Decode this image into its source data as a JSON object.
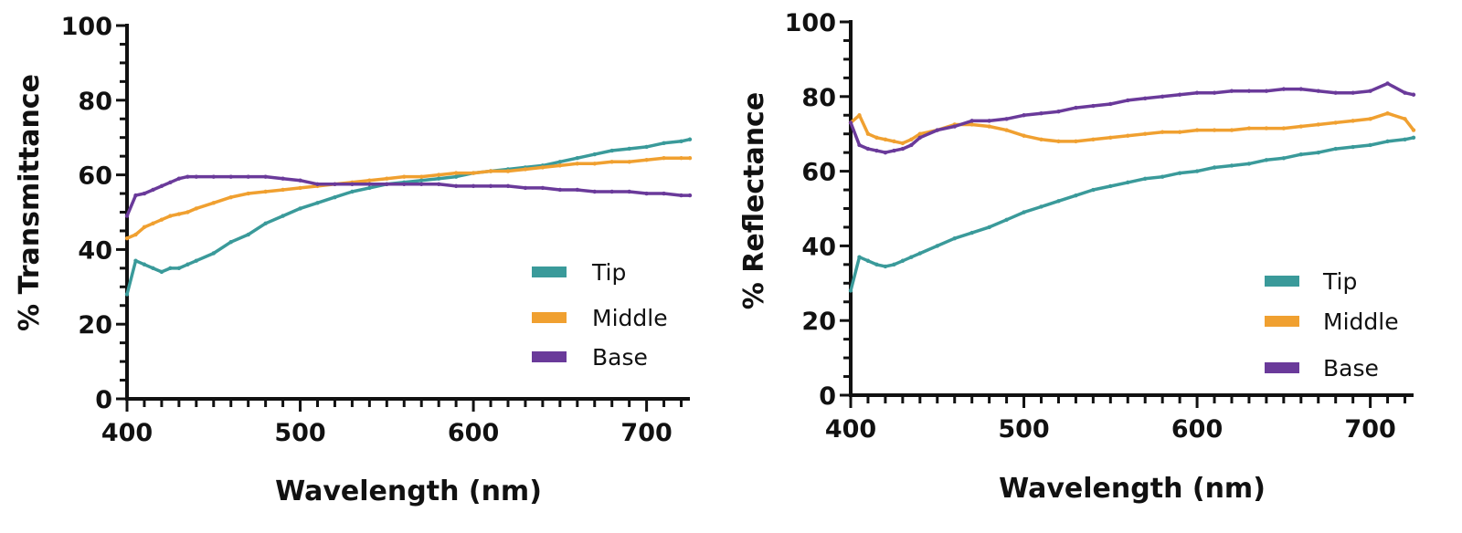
{
  "chart_data": [
    {
      "type": "line",
      "xlabel": "Wavelength (nm)",
      "ylabel": "% Transmittance",
      "xlim": [
        400,
        725
      ],
      "ylim": [
        0,
        100
      ],
      "x_ticks": [
        400,
        500,
        600,
        700
      ],
      "y_ticks": [
        0,
        20,
        40,
        60,
        80,
        100
      ],
      "legend_position": "bottom-right",
      "x": [
        400,
        405,
        410,
        415,
        420,
        425,
        430,
        435,
        440,
        450,
        460,
        470,
        480,
        490,
        500,
        510,
        520,
        530,
        540,
        550,
        560,
        570,
        580,
        590,
        600,
        610,
        620,
        630,
        640,
        650,
        660,
        670,
        680,
        690,
        700,
        710,
        720,
        725
      ],
      "series": [
        {
          "name": "Tip",
          "color": "#3a9a9a",
          "values": [
            28,
            37,
            36,
            35,
            34,
            35,
            35,
            36,
            37,
            39,
            42,
            44,
            47,
            49,
            51,
            52.5,
            54,
            55.5,
            56.5,
            57.5,
            58,
            58.5,
            59,
            59.5,
            60.5,
            61,
            61.5,
            62,
            62.5,
            63.5,
            64.5,
            65.5,
            66.5,
            67,
            67.5,
            68.5,
            69,
            69.5
          ]
        },
        {
          "name": "Middle",
          "color": "#f0a030",
          "values": [
            43,
            44,
            46,
            47,
            48,
            49,
            49.5,
            50,
            51,
            52.5,
            54,
            55,
            55.5,
            56,
            56.5,
            57,
            57.5,
            58,
            58.5,
            59,
            59.5,
            59.5,
            60,
            60.5,
            60.5,
            61,
            61,
            61.5,
            62,
            62.5,
            63,
            63,
            63.5,
            63.5,
            64,
            64.5,
            64.5,
            64.5
          ]
        },
        {
          "name": "Base",
          "color": "#6a3a9a",
          "values": [
            49,
            54.5,
            55,
            56,
            57,
            58,
            59,
            59.5,
            59.5,
            59.5,
            59.5,
            59.5,
            59.5,
            59,
            58.5,
            57.5,
            57.5,
            57.5,
            57.5,
            57.5,
            57.5,
            57.5,
            57.5,
            57,
            57,
            57,
            57,
            56.5,
            56.5,
            56,
            56,
            55.5,
            55.5,
            55.5,
            55,
            55,
            54.5,
            54.5
          ]
        }
      ]
    },
    {
      "type": "line",
      "xlabel": "Wavelength (nm)",
      "ylabel": "% Reflectance",
      "xlim": [
        400,
        725
      ],
      "ylim": [
        0,
        100
      ],
      "x_ticks": [
        400,
        500,
        600,
        700
      ],
      "y_ticks": [
        0,
        20,
        40,
        60,
        80,
        100
      ],
      "legend_position": "bottom-right",
      "x": [
        400,
        405,
        410,
        415,
        420,
        425,
        430,
        435,
        440,
        450,
        460,
        470,
        480,
        490,
        500,
        510,
        520,
        530,
        540,
        550,
        560,
        570,
        580,
        590,
        600,
        610,
        620,
        630,
        640,
        650,
        660,
        670,
        680,
        690,
        700,
        710,
        720,
        725
      ],
      "series": [
        {
          "name": "Tip",
          "color": "#3a9a9a",
          "values": [
            28,
            37,
            36,
            35,
            34.5,
            35,
            36,
            37,
            38,
            40,
            42,
            43.5,
            45,
            47,
            49,
            50.5,
            52,
            53.5,
            55,
            56,
            57,
            58,
            58.5,
            59.5,
            60,
            61,
            61.5,
            62,
            63,
            63.5,
            64.5,
            65,
            66,
            66.5,
            67,
            68,
            68.5,
            69
          ]
        },
        {
          "name": "Middle",
          "color": "#f0a030",
          "values": [
            73,
            75,
            70,
            69,
            68.5,
            68,
            67.5,
            68.5,
            70,
            71,
            72.5,
            72.5,
            72,
            71,
            69.5,
            68.5,
            68,
            68,
            68.5,
            69,
            69.5,
            70,
            70.5,
            70.5,
            71,
            71,
            71,
            71.5,
            71.5,
            71.5,
            72,
            72.5,
            73,
            73.5,
            74,
            75.5,
            74,
            71
          ]
        },
        {
          "name": "Base",
          "color": "#6a3a9a",
          "values": [
            73,
            67,
            66,
            65.5,
            65,
            65.5,
            66,
            67,
            69,
            71,
            72,
            73.5,
            73.5,
            74,
            75,
            75.5,
            76,
            77,
            77.5,
            78,
            79,
            79.5,
            80,
            80.5,
            81,
            81,
            81.5,
            81.5,
            81.5,
            82,
            82,
            81.5,
            81,
            81,
            81.5,
            83.5,
            81,
            80.5
          ]
        }
      ]
    }
  ]
}
